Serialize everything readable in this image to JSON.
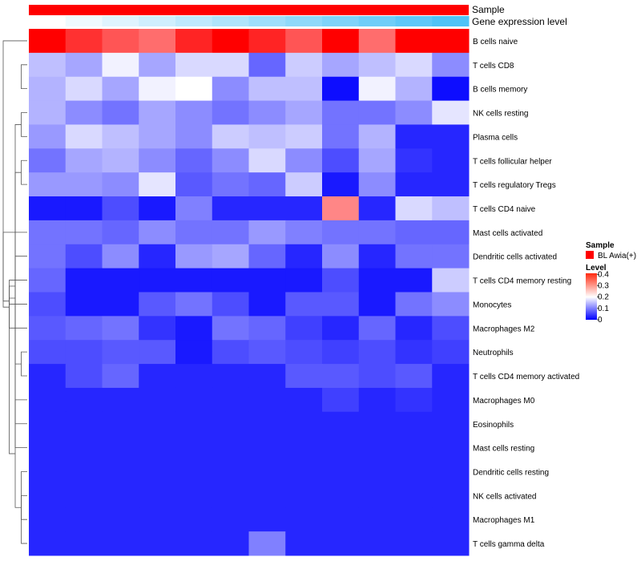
{
  "chart_data": {
    "type": "heatmap",
    "title": "",
    "annotations": [
      {
        "name": "Sample",
        "label": "Sample",
        "color": "#ff0000"
      },
      {
        "name": "Gene expression level",
        "label": "Gene expression level",
        "values": [
          0.0,
          0.05,
          0.1,
          0.15,
          0.2,
          0.25,
          0.3,
          0.35,
          0.4,
          0.45,
          0.5,
          0.55
        ],
        "color_low": "#ffffff",
        "color_high": "#4fc3f7"
      }
    ],
    "columns": 12,
    "rows": [
      "B cells naive",
      "T cells CD8",
      "B cells memory",
      "NK cells resting",
      "Plasma cells",
      "T cells follicular helper",
      "T cells regulatory  Tregs",
      "T cells CD4 naive",
      "Mast cells activated",
      "Dendritic cells activated",
      "T cells CD4 memory resting",
      "Monocytes",
      "Macrophages M2",
      "Neutrophils",
      "T cells CD4 memory activated",
      "Macrophages M0",
      "Eosinophils",
      "Mast cells resting",
      "Dendritic cells resting",
      "NK cells activated",
      "Macrophages M1",
      "T cells gamma delta"
    ],
    "values": [
      [
        0.41,
        0.37,
        0.34,
        0.32,
        0.38,
        0.41,
        0.38,
        0.34,
        0.41,
        0.32,
        0.41,
        0.41
      ],
      [
        0.15,
        0.13,
        0.19,
        0.13,
        0.17,
        0.17,
        0.08,
        0.16,
        0.13,
        0.15,
        0.17,
        0.11
      ],
      [
        0.14,
        0.17,
        0.13,
        0.19,
        0.2,
        0.11,
        0.15,
        0.15,
        0.01,
        0.19,
        0.14,
        0.01
      ],
      [
        0.14,
        0.11,
        0.09,
        0.13,
        0.11,
        0.09,
        0.11,
        0.13,
        0.09,
        0.09,
        0.11,
        0.18
      ],
      [
        0.12,
        0.17,
        0.15,
        0.13,
        0.11,
        0.16,
        0.15,
        0.16,
        0.09,
        0.14,
        0.03,
        0.03
      ],
      [
        0.09,
        0.13,
        0.14,
        0.11,
        0.08,
        0.11,
        0.17,
        0.11,
        0.06,
        0.13,
        0.04,
        0.03
      ],
      [
        0.12,
        0.12,
        0.11,
        0.18,
        0.07,
        0.09,
        0.08,
        0.16,
        0.02,
        0.11,
        0.03,
        0.03
      ],
      [
        0.02,
        0.02,
        0.06,
        0.02,
        0.1,
        0.03,
        0.03,
        0.03,
        0.3,
        0.03,
        0.17,
        0.15
      ],
      [
        0.09,
        0.09,
        0.08,
        0.11,
        0.09,
        0.09,
        0.12,
        0.1,
        0.09,
        0.09,
        0.08,
        0.08
      ],
      [
        0.09,
        0.06,
        0.11,
        0.03,
        0.12,
        0.13,
        0.08,
        0.03,
        0.11,
        0.03,
        0.09,
        0.09
      ],
      [
        0.08,
        0.02,
        0.02,
        0.02,
        0.02,
        0.02,
        0.02,
        0.02,
        0.06,
        0.02,
        0.02,
        0.16
      ],
      [
        0.06,
        0.02,
        0.02,
        0.07,
        0.09,
        0.06,
        0.02,
        0.07,
        0.07,
        0.02,
        0.09,
        0.11
      ],
      [
        0.07,
        0.08,
        0.09,
        0.04,
        0.02,
        0.09,
        0.08,
        0.05,
        0.03,
        0.08,
        0.03,
        0.06
      ],
      [
        0.06,
        0.06,
        0.07,
        0.07,
        0.02,
        0.06,
        0.07,
        0.06,
        0.05,
        0.06,
        0.04,
        0.05
      ],
      [
        0.03,
        0.06,
        0.08,
        0.03,
        0.03,
        0.03,
        0.03,
        0.07,
        0.07,
        0.06,
        0.07,
        0.03
      ],
      [
        0.03,
        0.03,
        0.03,
        0.03,
        0.03,
        0.03,
        0.03,
        0.03,
        0.05,
        0.03,
        0.04,
        0.03
      ],
      [
        0.03,
        0.03,
        0.03,
        0.03,
        0.03,
        0.03,
        0.03,
        0.03,
        0.03,
        0.03,
        0.03,
        0.03
      ],
      [
        0.03,
        0.03,
        0.03,
        0.03,
        0.03,
        0.03,
        0.03,
        0.03,
        0.03,
        0.03,
        0.03,
        0.03
      ],
      [
        0.03,
        0.03,
        0.03,
        0.03,
        0.03,
        0.03,
        0.03,
        0.03,
        0.03,
        0.03,
        0.03,
        0.03
      ],
      [
        0.03,
        0.03,
        0.03,
        0.03,
        0.03,
        0.03,
        0.03,
        0.03,
        0.03,
        0.03,
        0.03,
        0.03
      ],
      [
        0.03,
        0.03,
        0.03,
        0.03,
        0.03,
        0.03,
        0.03,
        0.03,
        0.03,
        0.03,
        0.03,
        0.03
      ],
      [
        0.03,
        0.03,
        0.03,
        0.03,
        0.03,
        0.03,
        0.1,
        0.03,
        0.03,
        0.03,
        0.03,
        0.03
      ]
    ],
    "scale": {
      "min": 0,
      "max": 0.41,
      "mid": 0.2,
      "color_low": "#0000ff",
      "color_mid": "#ffffff",
      "color_high": "#ff0000"
    },
    "legend": {
      "sample_title": "Sample",
      "sample_label": "BL Awia(+)",
      "sample_color": "#ff0000",
      "level_title": "Level",
      "ticks": [
        0.4,
        0.3,
        0.2,
        0.1,
        0
      ]
    },
    "dendrogram": {
      "order": "rows",
      "merges": [
        [
          1,
          2
        ],
        [
          3,
          4
        ],
        [
          5,
          6
        ],
        [
          19,
          20
        ],
        [
          18,
          21
        ],
        [
          17,
          23
        ],
        [
          16,
          24
        ],
        [
          15,
          25
        ],
        [
          13,
          14
        ],
        [
          12,
          27
        ],
        [
          11,
          28
        ],
        [
          10,
          29
        ],
        [
          9,
          30
        ],
        [
          8,
          31
        ],
        [
          0,
          32
        ]
      ]
    }
  }
}
